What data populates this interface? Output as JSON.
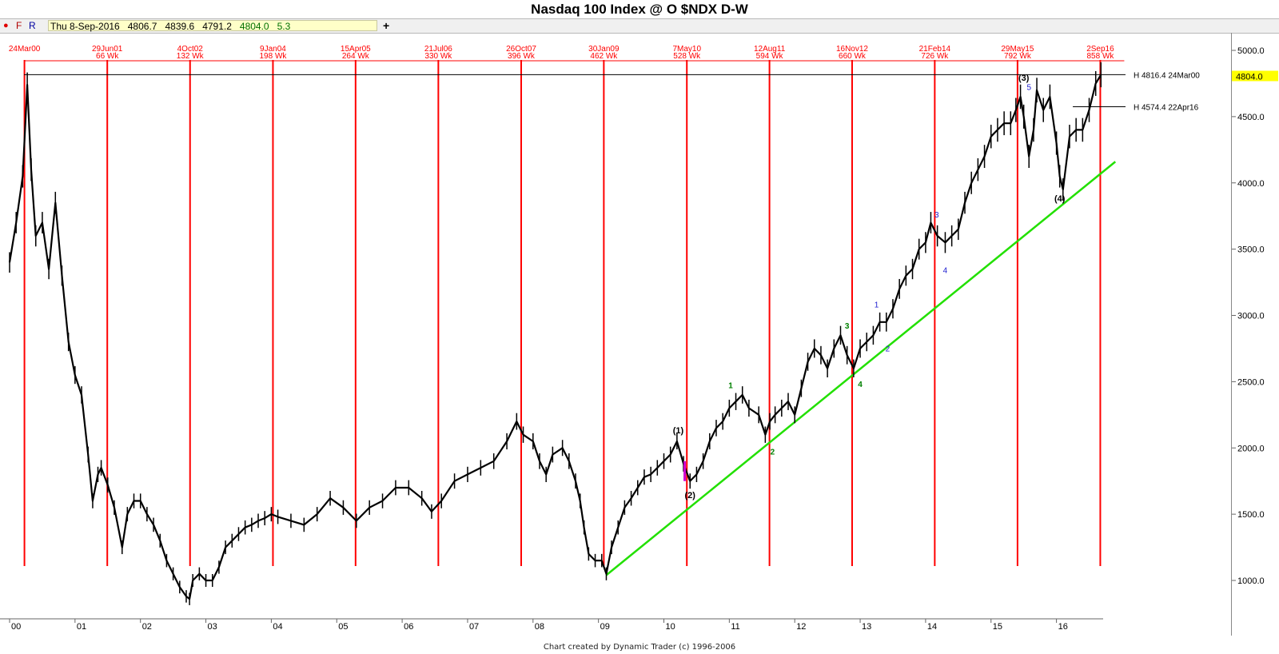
{
  "title": "Nasdaq 100 Index @ O $NDX   D-W",
  "toolbar": {
    "btn_record": "●",
    "btn_f": "F",
    "btn_r": "R",
    "quote_date": "Thu 8-Sep-2016",
    "quote_open": "4806.7",
    "quote_high": "4839.6",
    "quote_low": "4791.2",
    "quote_close": "4804.0",
    "quote_change": "5.3",
    "add_label": "+"
  },
  "footer": "Chart created by Dynamic Trader  (c) 1996-2006",
  "colors": {
    "price": "#000000",
    "cycle_line": "#ff0000",
    "cycle_text": "#ff0000",
    "trendline": "#22e000",
    "wave_major": "#000000",
    "wave_intermediate": "#008000",
    "wave_minor": "#2020d0",
    "price_tag_bg": "#ffff00",
    "marker": "#d000d0"
  },
  "chart_data": {
    "type": "line",
    "title": "Nasdaq 100 Index @ O $NDX   D-W",
    "xlabel": "",
    "ylabel": "",
    "xlim": [
      2000.0,
      2016.9
    ],
    "ylim": [
      750,
      5150
    ],
    "y_ticks": [
      "1000.0",
      "1500.0",
      "2000.0",
      "2500.0",
      "3000.0",
      "3500.0",
      "4000.0",
      "4500.0",
      "5000.0"
    ],
    "y_tick_values": [
      1000,
      1500,
      2000,
      2500,
      3000,
      3500,
      4000,
      4500,
      5000
    ],
    "x_ticks": [
      "00",
      "01",
      "02",
      "03",
      "04",
      "05",
      "06",
      "07",
      "08",
      "09",
      "10",
      "11",
      "12",
      "13",
      "14",
      "15",
      "16"
    ],
    "x_tick_values": [
      2000,
      2001,
      2002,
      2003,
      2004,
      2005,
      2006,
      2007,
      2008,
      2009,
      2010,
      2011,
      2012,
      2013,
      2014,
      2015,
      2016
    ],
    "last_price_label": "4804.0",
    "series": [
      {
        "values_x": [
          2000.0,
          2000.1,
          2000.2,
          2000.27,
          2000.33,
          2000.4,
          2000.5,
          2000.6,
          2000.7,
          2000.8,
          2000.9,
          2001.0,
          2001.1,
          2001.2,
          2001.27,
          2001.35,
          2001.4,
          2001.5,
          2001.6,
          2001.72,
          2001.8,
          2001.9,
          2002.0,
          2002.1,
          2002.2,
          2002.3,
          2002.4,
          2002.5,
          2002.6,
          2002.7,
          2002.75,
          2002.8,
          2002.9,
          2003.0,
          2003.1,
          2003.2,
          2003.3,
          2003.4,
          2003.5,
          2003.6,
          2003.7,
          2003.8,
          2003.9,
          2004.0,
          2004.1,
          2004.3,
          2004.5,
          2004.7,
          2004.9,
          2005.1,
          2005.3,
          2005.5,
          2005.7,
          2005.9,
          2006.1,
          2006.3,
          2006.45,
          2006.6,
          2006.8,
          2007.0,
          2007.2,
          2007.4,
          2007.6,
          2007.75,
          2007.85,
          2008.0,
          2008.1,
          2008.2,
          2008.3,
          2008.45,
          2008.55,
          2008.65,
          2008.72,
          2008.78,
          2008.85,
          2008.95,
          2009.05,
          2009.12,
          2009.2,
          2009.3,
          2009.4,
          2009.5,
          2009.6,
          2009.7,
          2009.8,
          2009.9,
          2010.0,
          2010.1,
          2010.2,
          2010.3,
          2010.4,
          2010.5,
          2010.6,
          2010.7,
          2010.8,
          2010.9,
          2011.0,
          2011.1,
          2011.2,
          2011.3,
          2011.45,
          2011.55,
          2011.62,
          2011.7,
          2011.8,
          2011.9,
          2012.0,
          2012.1,
          2012.2,
          2012.3,
          2012.4,
          2012.5,
          2012.6,
          2012.7,
          2012.8,
          2012.9,
          2013.0,
          2013.1,
          2013.2,
          2013.3,
          2013.4,
          2013.5,
          2013.6,
          2013.7,
          2013.8,
          2013.9,
          2014.0,
          2014.08,
          2014.18,
          2014.3,
          2014.4,
          2014.5,
          2014.6,
          2014.7,
          2014.8,
          2014.9,
          2015.0,
          2015.1,
          2015.2,
          2015.3,
          2015.38,
          2015.45,
          2015.5,
          2015.58,
          2015.65,
          2015.7,
          2015.8,
          2015.9,
          2016.0,
          2016.05,
          2016.1,
          2016.2,
          2016.3,
          2016.4,
          2016.5,
          2016.6,
          2016.68
        ],
        "values_y": [
          3400,
          3700,
          4050,
          4740,
          4100,
          3600,
          3700,
          3350,
          3850,
          3300,
          2800,
          2550,
          2400,
          1950,
          1600,
          1800,
          1850,
          1720,
          1550,
          1250,
          1500,
          1600,
          1600,
          1500,
          1420,
          1300,
          1150,
          1050,
          950,
          880,
          860,
          1000,
          1050,
          1000,
          1000,
          1100,
          1250,
          1300,
          1350,
          1400,
          1420,
          1450,
          1470,
          1500,
          1480,
          1450,
          1420,
          1500,
          1620,
          1550,
          1450,
          1550,
          1600,
          1700,
          1700,
          1620,
          1520,
          1600,
          1750,
          1800,
          1850,
          1900,
          2050,
          2200,
          2100,
          2050,
          1900,
          1800,
          1950,
          2000,
          1900,
          1750,
          1600,
          1400,
          1200,
          1150,
          1150,
          1050,
          1250,
          1400,
          1550,
          1620,
          1700,
          1780,
          1800,
          1850,
          1900,
          1950,
          2050,
          1880,
          1750,
          1800,
          1900,
          2050,
          2150,
          2200,
          2300,
          2350,
          2400,
          2300,
          2250,
          2100,
          2200,
          2250,
          2300,
          2350,
          2250,
          2450,
          2650,
          2750,
          2700,
          2600,
          2750,
          2850,
          2700,
          2600,
          2750,
          2800,
          2850,
          2950,
          2950,
          3050,
          3200,
          3300,
          3350,
          3500,
          3550,
          3700,
          3600,
          3550,
          3600,
          3650,
          3850,
          4000,
          4100,
          4200,
          4350,
          4400,
          4450,
          4450,
          4550,
          4650,
          4500,
          4200,
          4400,
          4700,
          4550,
          4650,
          4300,
          4050,
          3950,
          4350,
          4400,
          4400,
          4550,
          4750,
          4816
        ]
      }
    ],
    "cycle_lines": [
      {
        "x": 2000.227,
        "date": "24Mar00",
        "weeks": ""
      },
      {
        "x": 2001.493,
        "date": "29Jun01",
        "weeks": "66 Wk"
      },
      {
        "x": 2002.758,
        "date": "4Oct02",
        "weeks": "132 Wk"
      },
      {
        "x": 2004.025,
        "date": "9Jan04",
        "weeks": "198 Wk"
      },
      {
        "x": 2005.288,
        "date": "15Apr05",
        "weeks": "264 Wk"
      },
      {
        "x": 2006.553,
        "date": "21Jul06",
        "weeks": "330 Wk"
      },
      {
        "x": 2007.819,
        "date": "26Oct07",
        "weeks": "396 Wk"
      },
      {
        "x": 2009.082,
        "date": "30Jan09",
        "weeks": "462 Wk"
      },
      {
        "x": 2010.351,
        "date": "7May10",
        "weeks": "528 Wk"
      },
      {
        "x": 2011.614,
        "date": "12Aug11",
        "weeks": "594 Wk"
      },
      {
        "x": 2012.877,
        "date": "16Nov12",
        "weeks": "660 Wk"
      },
      {
        "x": 2014.14,
        "date": "21Feb14",
        "weeks": "726 Wk"
      },
      {
        "x": 2015.405,
        "date": "29May15",
        "weeks": "792 Wk"
      },
      {
        "x": 2016.67,
        "date": "2Sep16",
        "weeks": "858 Wk"
      }
    ],
    "trendline": {
      "x1": 2009.12,
      "y1": 1040,
      "x2": 2016.9,
      "y2": 4160
    },
    "horizontal_lines": [
      {
        "label": "H 4816.4 24Mar00",
        "y": 4816.4,
        "x_start": 2000.22
      },
      {
        "label": "H 4574.4 22Apr16",
        "y": 4574.4,
        "x_start": 2016.25
      }
    ],
    "wave_labels": [
      {
        "text": "(1)",
        "x": 2010.22,
        "y": 2110,
        "level": "major"
      },
      {
        "text": "(2)",
        "x": 2010.4,
        "y": 1620,
        "level": "major"
      },
      {
        "text": "(3)",
        "x": 2015.5,
        "y": 4770,
        "level": "major"
      },
      {
        "text": "(4)",
        "x": 2016.05,
        "y": 3860,
        "level": "major"
      },
      {
        "text": "1",
        "x": 2011.02,
        "y": 2450,
        "level": "intermediate"
      },
      {
        "text": "2",
        "x": 2011.66,
        "y": 1950,
        "level": "intermediate"
      },
      {
        "text": "3",
        "x": 2012.8,
        "y": 2900,
        "level": "intermediate"
      },
      {
        "text": "4",
        "x": 2013.0,
        "y": 2460,
        "level": "intermediate"
      },
      {
        "text": "1",
        "x": 2013.25,
        "y": 3060,
        "level": "minor"
      },
      {
        "text": "2",
        "x": 2013.42,
        "y": 2730,
        "level": "minor"
      },
      {
        "text": "3",
        "x": 2014.17,
        "y": 3740,
        "level": "minor"
      },
      {
        "text": "4",
        "x": 2014.3,
        "y": 3320,
        "level": "minor"
      },
      {
        "text": "5",
        "x": 2015.58,
        "y": 4700,
        "level": "minor"
      }
    ],
    "grid": false,
    "legend": "none"
  }
}
